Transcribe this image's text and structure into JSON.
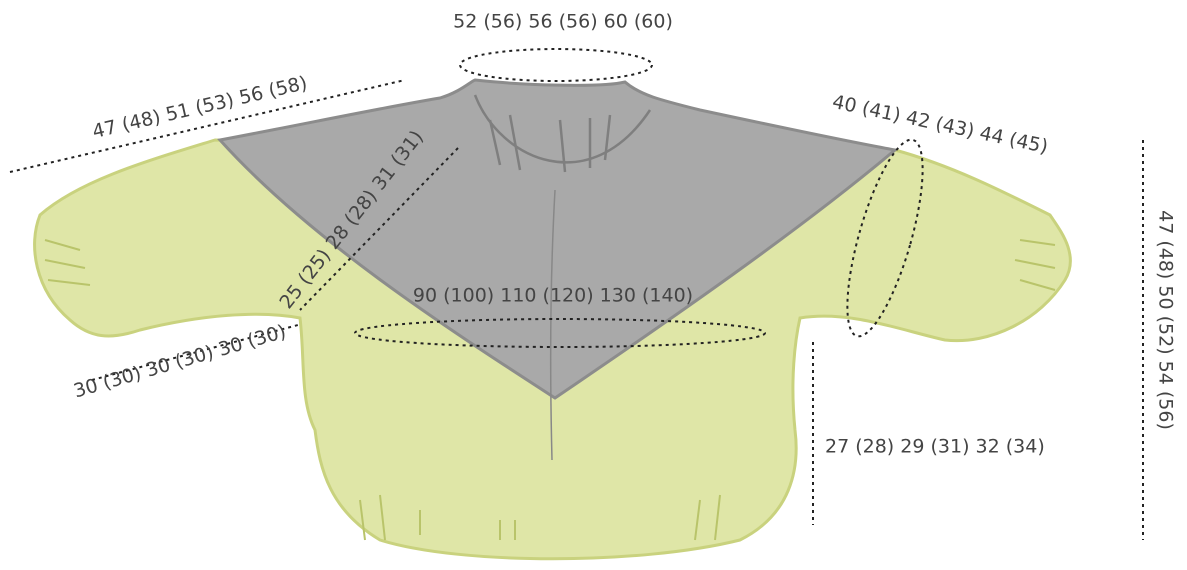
{
  "measurements": {
    "neck": "52 (56) 56 (56) 60 (60)",
    "shoulder_width": "47 (48) 51 (53) 56 (58)",
    "sleeve_circumference": "40 (41) 42 (43) 44 (45)",
    "yoke_depth": "25 (25) 28 (28) 31 (31)",
    "chest": "90 (100) 110 (120) 130 (140)",
    "sleeve_length": "30 (30) 30 (30) 30 (30)",
    "body_length": "27 (28) 29 (31) 32 (34)",
    "total_length": "47 (48) 50 (52) 54 (56)"
  }
}
